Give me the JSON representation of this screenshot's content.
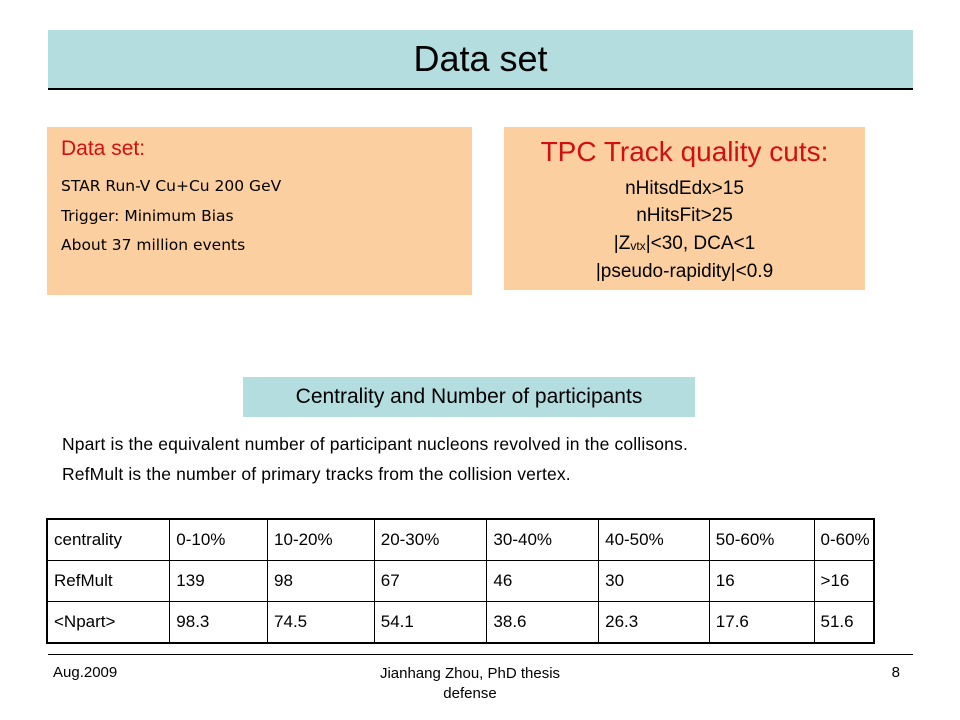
{
  "slide": {
    "title": "Data set"
  },
  "dataset_box": {
    "heading": "Data set:",
    "lines": [
      "STAR Run-V Cu+Cu 200 GeV",
      "Trigger: Minimum Bias",
      "About 37 million events"
    ]
  },
  "cuts_box": {
    "heading": "TPC Track quality cuts:",
    "line1": "nHitsdEdx>15",
    "line2": "nHitsFit>25",
    "line3_prefix": "|Z",
    "line3_sub": "vtx",
    "line3_suffix": "|<30, DCA<1",
    "line4": "|pseudo-rapidity|<0.9"
  },
  "section": {
    "label": "Centrality and Number of participants"
  },
  "description": {
    "line1": "Npart is the equivalent number of participant nucleons revolved in the collisons.",
    "line2": "RefMult is the number of primary tracks from the collision vertex."
  },
  "table": {
    "rows": [
      [
        "centrality",
        "0-10%",
        "10-20%",
        "20-30%",
        "30-40%",
        "40-50%",
        "50-60%",
        "0-60%"
      ],
      [
        "RefMult",
        "139",
        "98",
        "67",
        "46",
        "30",
        "16",
        ">16"
      ],
      [
        "<Npart>",
        "98.3",
        "74.5",
        "54.1",
        "38.6",
        "26.3",
        "17.6",
        "51.6"
      ]
    ]
  },
  "footer": {
    "date": "Aug.2009",
    "author_line1": "Jianhang Zhou, PhD thesis",
    "author_line2": "defense",
    "page": "8"
  }
}
